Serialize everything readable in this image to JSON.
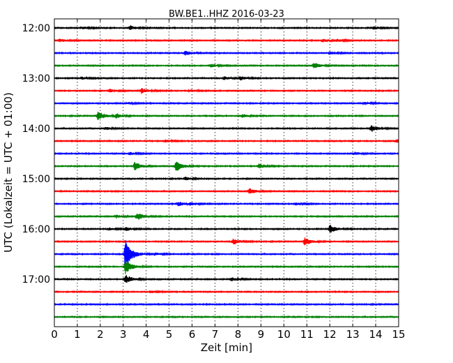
{
  "chart_data": {
    "type": "line",
    "title": "BW.BE1..HHZ 2016-03-23",
    "xlabel": "Zeit  [min]",
    "ylabel": "UTC (Lokalzeit = UTC + 01:00)",
    "xlim": [
      0,
      15
    ],
    "xticks": [
      0,
      1,
      2,
      3,
      4,
      5,
      6,
      7,
      8,
      9,
      10,
      11,
      12,
      13,
      14,
      15
    ],
    "ytick_labels": [
      "12:00",
      "13:00",
      "14:00",
      "15:00",
      "16:00",
      "17:00"
    ],
    "grid": "vertical dotted lines at each minute",
    "colors": [
      "#000000",
      "#ff0000",
      "#0000ff",
      "#008000"
    ],
    "series": [
      {
        "start": "12:00",
        "events": [
          {
            "t": 1.2,
            "amp": 0.2
          },
          {
            "t": 3.3,
            "amp": 0.35
          },
          {
            "t": 13.9,
            "amp": 0.25
          }
        ]
      },
      {
        "start": "12:15",
        "events": [
          {
            "t": 0.2,
            "amp": 0.3
          },
          {
            "t": 11.7,
            "amp": 0.25
          },
          {
            "t": 12.3,
            "amp": 0.2
          }
        ]
      },
      {
        "start": "12:30",
        "events": [
          {
            "t": 5.7,
            "amp": 0.35
          },
          {
            "t": 12.0,
            "amp": 0.25
          }
        ]
      },
      {
        "start": "12:45",
        "events": [
          {
            "t": 6.8,
            "amp": 0.3
          },
          {
            "t": 11.3,
            "amp": 0.45
          }
        ]
      },
      {
        "start": "13:00",
        "events": [
          {
            "t": 1.2,
            "amp": 0.2
          },
          {
            "t": 7.4,
            "amp": 0.25
          },
          {
            "t": 8.1,
            "amp": 0.3
          }
        ]
      },
      {
        "start": "13:15",
        "events": [
          {
            "t": 2.4,
            "amp": 0.25
          },
          {
            "t": 3.8,
            "amp": 0.45
          },
          {
            "t": 5.9,
            "amp": 0.2
          }
        ]
      },
      {
        "start": "13:30",
        "events": [
          {
            "t": 3.2,
            "amp": 0.15
          },
          {
            "t": 13.5,
            "amp": 0.2
          }
        ]
      },
      {
        "start": "13:45",
        "events": [
          {
            "t": 1.9,
            "amp": 0.8
          },
          {
            "t": 2.7,
            "amp": 0.35
          },
          {
            "t": 8.2,
            "amp": 0.25
          }
        ]
      },
      {
        "start": "14:00",
        "events": [
          {
            "t": 2.2,
            "amp": 0.25
          },
          {
            "t": 13.8,
            "amp": 0.55
          }
        ]
      },
      {
        "start": "14:15",
        "events": [
          {
            "t": 4.8,
            "amp": 0.2
          },
          {
            "t": 14.9,
            "amp": 0.3
          }
        ]
      },
      {
        "start": "14:30",
        "events": [
          {
            "t": 3.3,
            "amp": 0.2
          },
          {
            "t": 13.1,
            "amp": 0.25
          }
        ]
      },
      {
        "start": "14:45",
        "events": [
          {
            "t": 3.5,
            "amp": 0.65
          },
          {
            "t": 5.3,
            "amp": 0.85
          },
          {
            "t": 8.9,
            "amp": 0.4
          }
        ]
      },
      {
        "start": "15:00",
        "events": [
          {
            "t": 5.7,
            "amp": 0.25
          }
        ]
      },
      {
        "start": "15:15",
        "events": [
          {
            "t": 8.5,
            "amp": 0.45
          }
        ]
      },
      {
        "start": "15:30",
        "events": [
          {
            "t": 5.4,
            "amp": 0.35
          },
          {
            "t": 5.9,
            "amp": 0.2
          },
          {
            "t": 10.5,
            "amp": 0.2
          }
        ]
      },
      {
        "start": "15:45",
        "events": [
          {
            "t": 2.7,
            "amp": 0.25
          },
          {
            "t": 3.6,
            "amp": 0.6
          }
        ]
      },
      {
        "start": "16:00",
        "events": [
          {
            "t": 2.4,
            "amp": 0.2
          },
          {
            "t": 3.1,
            "amp": 0.3
          },
          {
            "t": 12.0,
            "amp": 0.65
          }
        ]
      },
      {
        "start": "16:15",
        "events": [
          {
            "t": 7.8,
            "amp": 0.5
          },
          {
            "t": 10.9,
            "amp": 0.65
          }
        ]
      },
      {
        "start": "16:30",
        "events": [
          {
            "t": 3.1,
            "amp": 2.5
          },
          {
            "t": 4.4,
            "amp": 0.2
          }
        ]
      },
      {
        "start": "16:45",
        "events": [
          {
            "t": 3.1,
            "amp": 1.2
          }
        ]
      },
      {
        "start": "17:00",
        "events": [
          {
            "t": 3.1,
            "amp": 0.7
          },
          {
            "t": 7.7,
            "amp": 0.3
          }
        ]
      },
      {
        "start": "17:15",
        "events": [
          {
            "t": 4.2,
            "amp": 0.15
          }
        ]
      },
      {
        "start": "17:30",
        "events": []
      },
      {
        "start": "17:45",
        "events": []
      }
    ]
  }
}
